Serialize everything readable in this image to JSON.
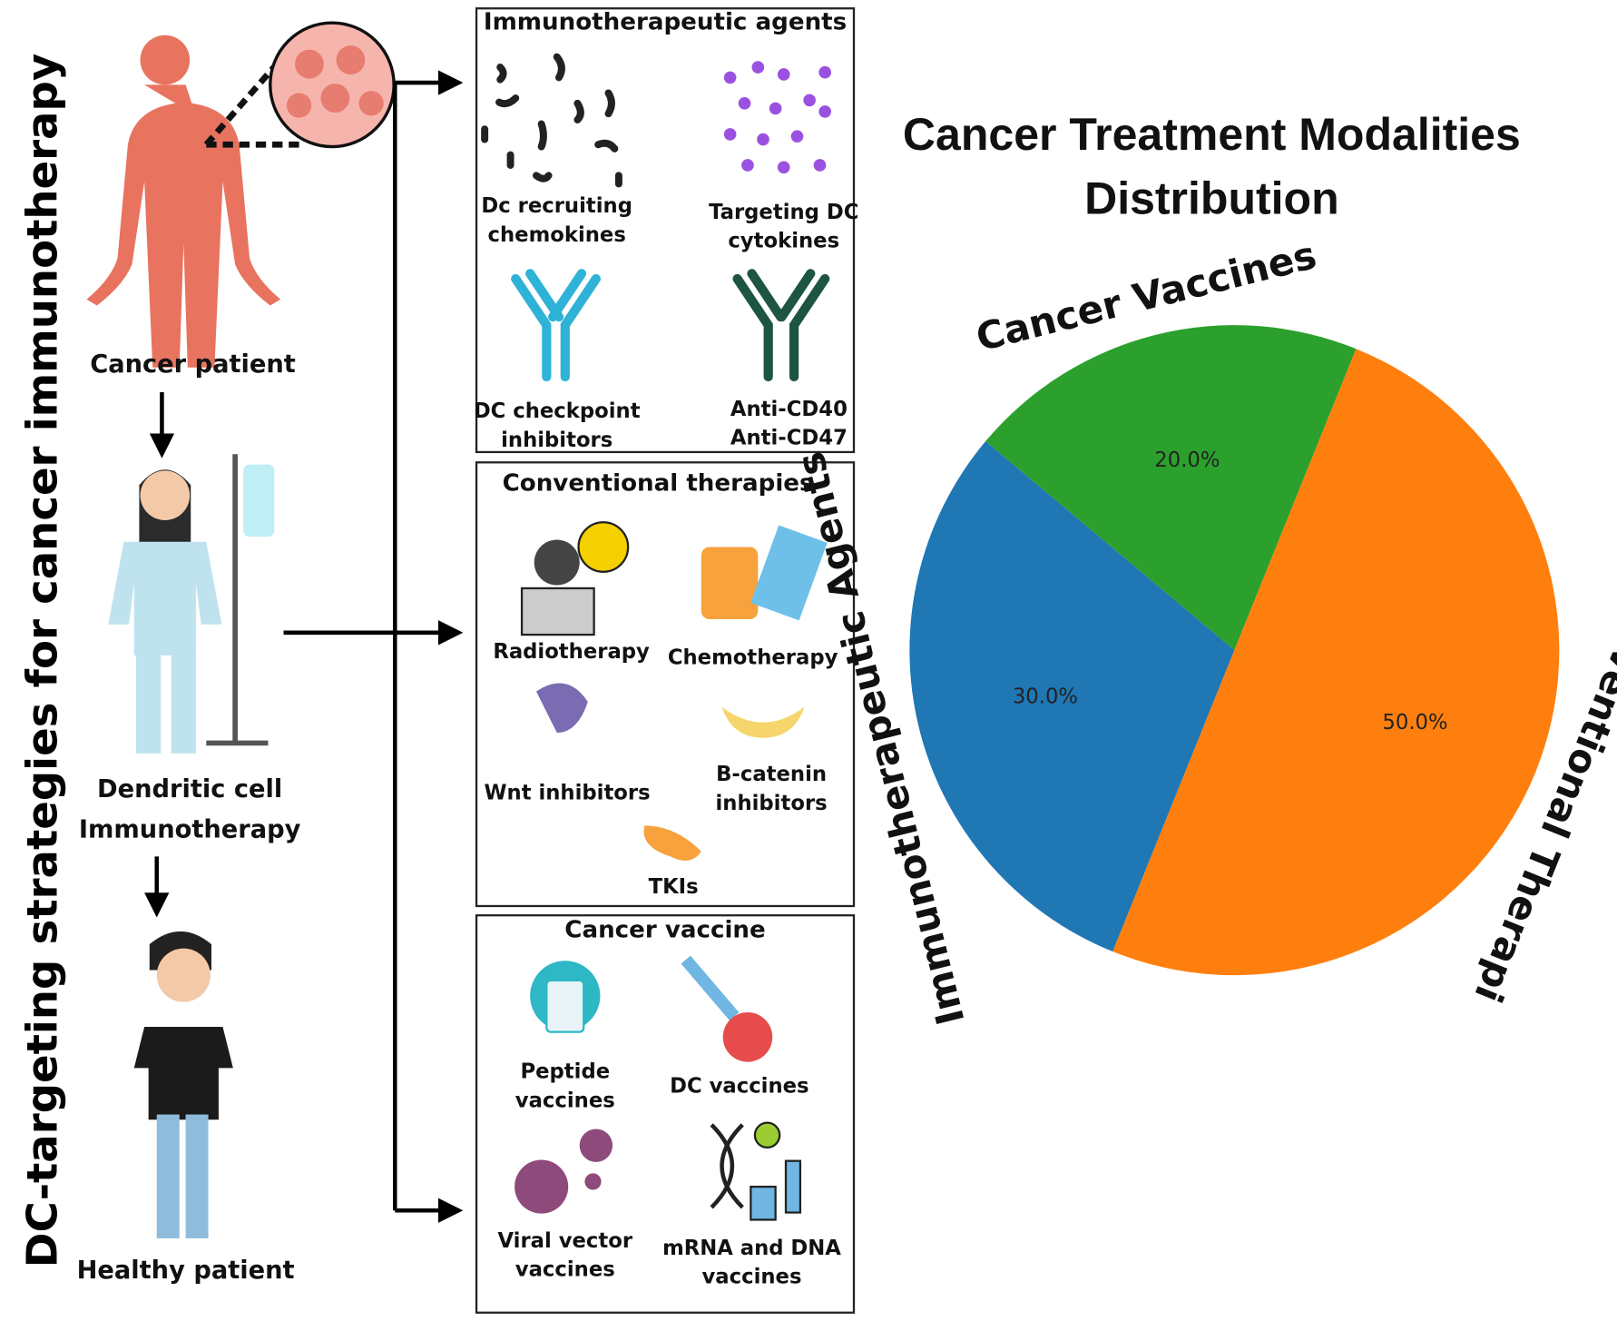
{
  "diagram": {
    "side_title": "DC-targeting strategies for cancer immunotherapy",
    "stages": {
      "cancer": "Cancer patient",
      "therapy": [
        "Dendritic cell",
        "Immunotherapy"
      ],
      "healthy": "Healthy patient"
    },
    "boxes": [
      {
        "title": "Immunotherapeutic agents",
        "items": [
          [
            "Dc recruiting",
            "chemokines"
          ],
          [
            "Targeting DC",
            "cytokines"
          ],
          [
            "DC checkpoint",
            "inhibitors"
          ],
          [
            "Anti-CD40",
            "Anti-CD47"
          ]
        ]
      },
      {
        "title": "Conventional therapies",
        "items": [
          [
            "Radiotherapy"
          ],
          [
            "Chemotherapy"
          ],
          [
            "Wnt inhibitors"
          ],
          [
            "B-catenin",
            "inhibitors"
          ],
          [
            "TKIs"
          ]
        ]
      },
      {
        "title": "Cancer vaccine",
        "items": [
          [
            "Peptide",
            "vaccines"
          ],
          [
            "DC vaccines"
          ],
          [
            "Viral vector",
            "vaccines"
          ],
          [
            "mRNA and DNA",
            "vaccines"
          ]
        ]
      }
    ]
  },
  "chart_data": {
    "type": "pie",
    "title": "Cancer Treatment Modalities Distribution",
    "categories": [
      "Cancer Vaccines",
      "Immunotherapeutic Agents",
      "Conventional Therapi"
    ],
    "values": [
      20,
      30,
      50
    ],
    "value_labels": [
      "20.0%",
      "30.0%",
      "50.0%"
    ],
    "colors": [
      "#2ca02c",
      "#1f77b4",
      "#ff7f0e"
    ]
  }
}
